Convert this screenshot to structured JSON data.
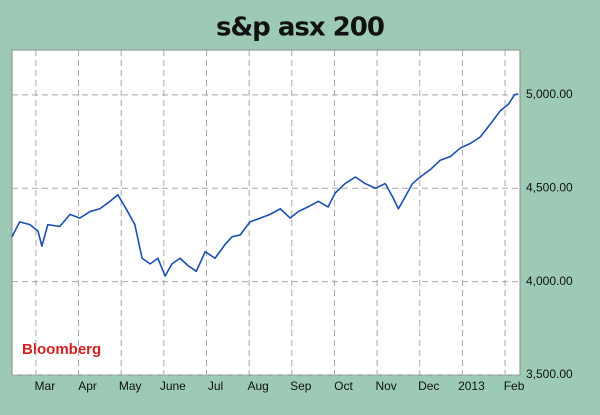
{
  "chart_data": {
    "type": "line",
    "title": "s&p asx 200",
    "source": "Bloomberg",
    "x": [
      0.44,
      0.62,
      0.86,
      1.05,
      1.14,
      1.28,
      1.56,
      1.8,
      2.03,
      2.27,
      2.5,
      2.74,
      2.92,
      3.09,
      3.32,
      3.49,
      3.68,
      3.86,
      4.03,
      4.19,
      4.38,
      4.57,
      4.76,
      4.97,
      5.2,
      5.44,
      5.6,
      5.79,
      6.02,
      6.26,
      6.49,
      6.73,
      6.96,
      7.15,
      7.38,
      7.62,
      7.85,
      8.02,
      8.25,
      8.49,
      8.72,
      8.96,
      9.19,
      9.36,
      9.5,
      9.66,
      9.83,
      10.01,
      10.25,
      10.48,
      10.72,
      10.95,
      11.19,
      11.42,
      11.66,
      11.89,
      12.08,
      12.22,
      12.31
    ],
    "series": [
      {
        "color": "#1a4fb0",
        "values": [
          4240,
          4320,
          4305,
          4270,
          4190,
          4305,
          4295,
          4360,
          4340,
          4375,
          4390,
          4430,
          4465,
          4400,
          4305,
          4125,
          4095,
          4125,
          4030,
          4095,
          4125,
          4085,
          4055,
          4160,
          4125,
          4200,
          4240,
          4250,
          4320,
          4340,
          4360,
          4390,
          4340,
          4375,
          4400,
          4430,
          4400,
          4475,
          4525,
          4560,
          4525,
          4500,
          4525,
          4455,
          4390,
          4455,
          4525,
          4560,
          4600,
          4650,
          4670,
          4715,
          4740,
          4775,
          4845,
          4915,
          4950,
          5000,
          5005
        ]
      }
    ],
    "xlim": [
      0.44,
      12.35
    ],
    "xticks": [
      {
        "value": 1,
        "label": "Mar"
      },
      {
        "value": 2,
        "label": "Apr"
      },
      {
        "value": 3,
        "label": "May"
      },
      {
        "value": 4,
        "label": "June"
      },
      {
        "value": 5,
        "label": "Jul"
      },
      {
        "value": 6,
        "label": "Aug"
      },
      {
        "value": 7,
        "label": "Sep"
      },
      {
        "value": 8,
        "label": "Oct"
      },
      {
        "value": 9,
        "label": "Nov"
      },
      {
        "value": 10,
        "label": "Dec"
      },
      {
        "value": 11,
        "label": "2013"
      },
      {
        "value": 12,
        "label": "Feb"
      }
    ],
    "ylim": [
      3500,
      5240
    ],
    "yticks": [
      {
        "value": 3500,
        "label": "3,500.00"
      },
      {
        "value": 4000,
        "label": "4,000.00"
      },
      {
        "value": 4500,
        "label": "4,500.00"
      },
      {
        "value": 5000,
        "label": "5,000.00"
      }
    ],
    "grid": true
  }
}
